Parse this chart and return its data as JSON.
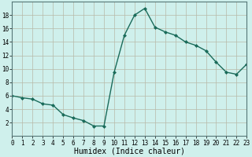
{
  "x": [
    0,
    1,
    2,
    3,
    4,
    5,
    6,
    7,
    8,
    9,
    10,
    11,
    12,
    13,
    14,
    15,
    16,
    17,
    18,
    19,
    20,
    21,
    22,
    23
  ],
  "y": [
    6.0,
    5.7,
    5.5,
    4.8,
    4.6,
    3.2,
    2.7,
    2.3,
    1.5,
    1.5,
    9.5,
    15.0,
    18.0,
    19.0,
    16.2,
    15.5,
    15.0,
    14.0,
    13.5,
    12.7,
    11.0,
    9.5,
    9.2,
    10.7
  ],
  "line_color": "#1a6b5a",
  "marker": "D",
  "marker_size": 2.0,
  "bg_color": "#cff0ec",
  "grid_color_major": "#b8b8a8",
  "grid_color_minor": "#d8d8c8",
  "xlabel": "Humidex (Indice chaleur)",
  "ytick_labels": [
    "2",
    "4",
    "6",
    "8",
    "10",
    "12",
    "14",
    "16",
    "18"
  ],
  "ytick_vals": [
    2,
    4,
    6,
    8,
    10,
    12,
    14,
    16,
    18
  ],
  "xtick_vals": [
    0,
    1,
    2,
    3,
    4,
    5,
    6,
    7,
    8,
    9,
    10,
    11,
    12,
    13,
    14,
    15,
    16,
    17,
    18,
    19,
    20,
    21,
    22,
    23
  ],
  "xlim": [
    0,
    23
  ],
  "ylim": [
    0,
    20
  ],
  "tick_fontsize": 5.5,
  "xlabel_fontsize": 7.0,
  "linewidth": 1.0
}
